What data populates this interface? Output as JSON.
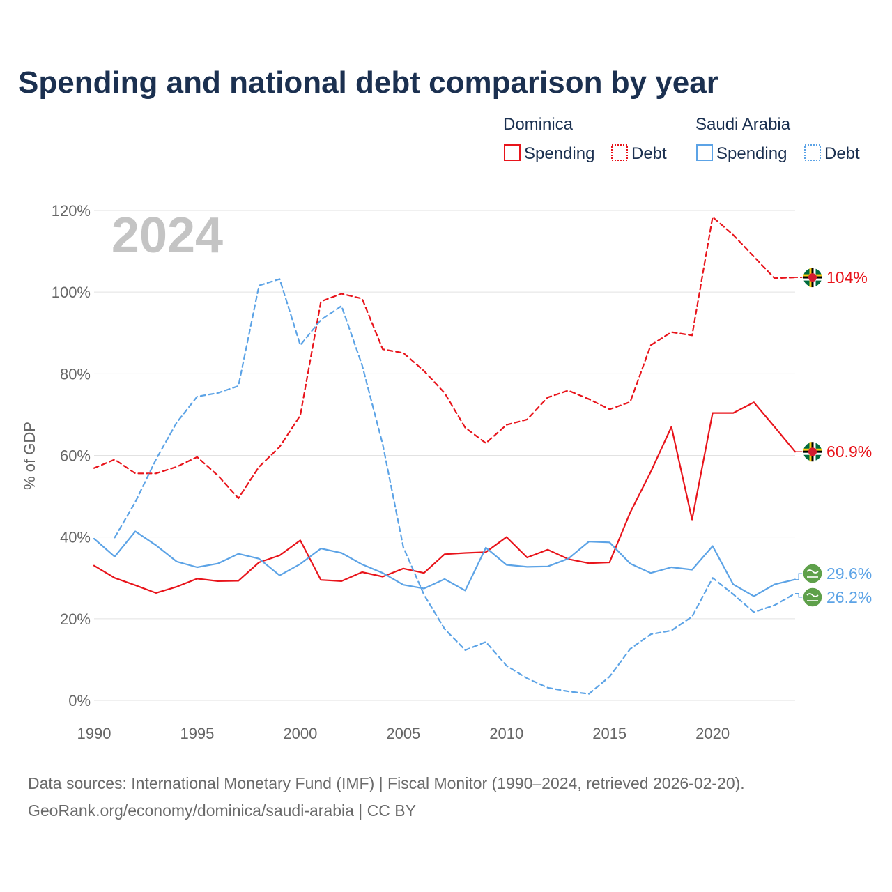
{
  "chart_data": {
    "type": "line",
    "title": "Spending and national debt comparison by year",
    "year_watermark": "2024",
    "ylabel": "% of GDP",
    "xlabel": "",
    "xlim": [
      1990,
      2024
    ],
    "ylim": [
      0,
      120
    ],
    "x_ticks": [
      "1990",
      "1995",
      "2000",
      "2005",
      "2010",
      "2015",
      "2020"
    ],
    "x_tick_values": [
      1990,
      1995,
      2000,
      2005,
      2010,
      2015,
      2020
    ],
    "y_ticks": [
      "0%",
      "20%",
      "40%",
      "60%",
      "80%",
      "100%",
      "120%"
    ],
    "y_tick_values": [
      0,
      20,
      40,
      60,
      80,
      100,
      120
    ],
    "grid": true,
    "legend": {
      "position": "top-right",
      "groups": [
        {
          "country": "Dominica",
          "items": [
            "Spending",
            "Debt"
          ]
        },
        {
          "country": "Saudi Arabia",
          "items": [
            "Spending",
            "Debt"
          ]
        }
      ]
    },
    "series": [
      {
        "name": "Dominica Spending",
        "country": "Dominica",
        "metric": "Spending",
        "color": "#e8141b",
        "style": "solid",
        "label": "60.9%",
        "end_value": 60.9,
        "x": [
          1990,
          1991,
          1992,
          1993,
          1994,
          1995,
          1996,
          1997,
          1998,
          1999,
          2000,
          2001,
          2002,
          2003,
          2004,
          2005,
          2006,
          2007,
          2008,
          2009,
          2010,
          2011,
          2012,
          2013,
          2014,
          2015,
          2016,
          2017,
          2018,
          2019,
          2020,
          2021,
          2022,
          2023,
          2024
        ],
        "values": [
          33.0,
          30.0,
          28.2,
          26.3,
          27.8,
          29.8,
          29.2,
          29.3,
          33.8,
          35.5,
          39.2,
          29.5,
          29.2,
          31.4,
          30.3,
          32.3,
          31.2,
          35.8,
          36.1,
          36.3,
          40.0,
          35.0,
          36.9,
          34.6,
          33.6,
          33.8,
          46.0,
          56.0,
          67.0,
          44.3,
          70.4,
          70.4,
          73.0,
          67.0,
          60.9
        ]
      },
      {
        "name": "Dominica Debt",
        "country": "Dominica",
        "metric": "Debt",
        "color": "#e8141b",
        "style": "dashed",
        "label": "104%",
        "end_value": 103.6,
        "x": [
          1990,
          1991,
          1992,
          1993,
          1994,
          1995,
          1996,
          1997,
          1998,
          1999,
          2000,
          2001,
          2002,
          2003,
          2004,
          2005,
          2006,
          2007,
          2008,
          2009,
          2010,
          2011,
          2012,
          2013,
          2014,
          2015,
          2016,
          2017,
          2018,
          2019,
          2020,
          2021,
          2022,
          2023,
          2024
        ],
        "values": [
          56.9,
          59.0,
          55.6,
          55.6,
          57.2,
          59.6,
          55.1,
          49.5,
          57.2,
          62.1,
          69.8,
          97.7,
          99.6,
          98.4,
          86.0,
          85.1,
          80.7,
          75.3,
          66.8,
          63.0,
          67.5,
          68.8,
          74.2,
          75.9,
          73.8,
          71.3,
          73.1,
          87.0,
          90.2,
          89.4,
          118.4,
          114.0,
          108.7,
          103.4,
          103.6
        ]
      },
      {
        "name": "Saudi Arabia Spending",
        "country": "Saudi Arabia",
        "metric": "Spending",
        "color": "#5ca3e6",
        "style": "solid",
        "label": "29.6%",
        "end_value": 29.6,
        "x": [
          1990,
          1991,
          1992,
          1993,
          1994,
          1995,
          1996,
          1997,
          1998,
          1999,
          2000,
          2001,
          2002,
          2003,
          2004,
          2005,
          2006,
          2007,
          2008,
          2009,
          2010,
          2011,
          2012,
          2013,
          2014,
          2015,
          2016,
          2017,
          2018,
          2019,
          2020,
          2021,
          2022,
          2023,
          2024
        ],
        "values": [
          39.6,
          35.2,
          41.4,
          38.0,
          34.0,
          32.6,
          33.5,
          35.9,
          34.7,
          30.6,
          33.4,
          37.2,
          36.1,
          33.3,
          31.2,
          28.3,
          27.4,
          29.7,
          26.9,
          37.4,
          33.2,
          32.7,
          32.8,
          34.7,
          38.9,
          38.7,
          33.5,
          31.2,
          32.6,
          32.0,
          37.8,
          28.4,
          25.5,
          28.4,
          29.6
        ]
      },
      {
        "name": "Saudi Arabia Debt",
        "country": "Saudi Arabia",
        "metric": "Debt",
        "color": "#5ca3e6",
        "style": "dashed",
        "label": "26.2%",
        "end_value": 26.2,
        "x": [
          1991,
          1992,
          1993,
          1994,
          1995,
          1996,
          1997,
          1998,
          1999,
          2000,
          2001,
          2002,
          2003,
          2004,
          2005,
          2006,
          2007,
          2008,
          2009,
          2010,
          2011,
          2012,
          2013,
          2014,
          2015,
          2016,
          2017,
          2018,
          2019,
          2020,
          2021,
          2022,
          2023,
          2024
        ],
        "values": [
          39.9,
          48.6,
          59.0,
          68.0,
          74.4,
          75.3,
          77.0,
          101.6,
          103.2,
          87.0,
          93.2,
          96.6,
          82.1,
          62.7,
          37.5,
          25.9,
          17.5,
          12.3,
          14.3,
          8.5,
          5.4,
          3.1,
          2.2,
          1.6,
          5.8,
          12.6,
          16.2,
          17.1,
          20.5,
          30.0,
          26.0,
          21.6,
          23.3,
          26.2
        ]
      }
    ],
    "source_line_1": "Data sources: International Monetary Fund (IMF) | Fiscal Monitor (1990–2024, retrieved 2026-02-20).",
    "source_line_2": "GeoRank.org/economy/dominica/saudi-arabia | CC BY"
  }
}
